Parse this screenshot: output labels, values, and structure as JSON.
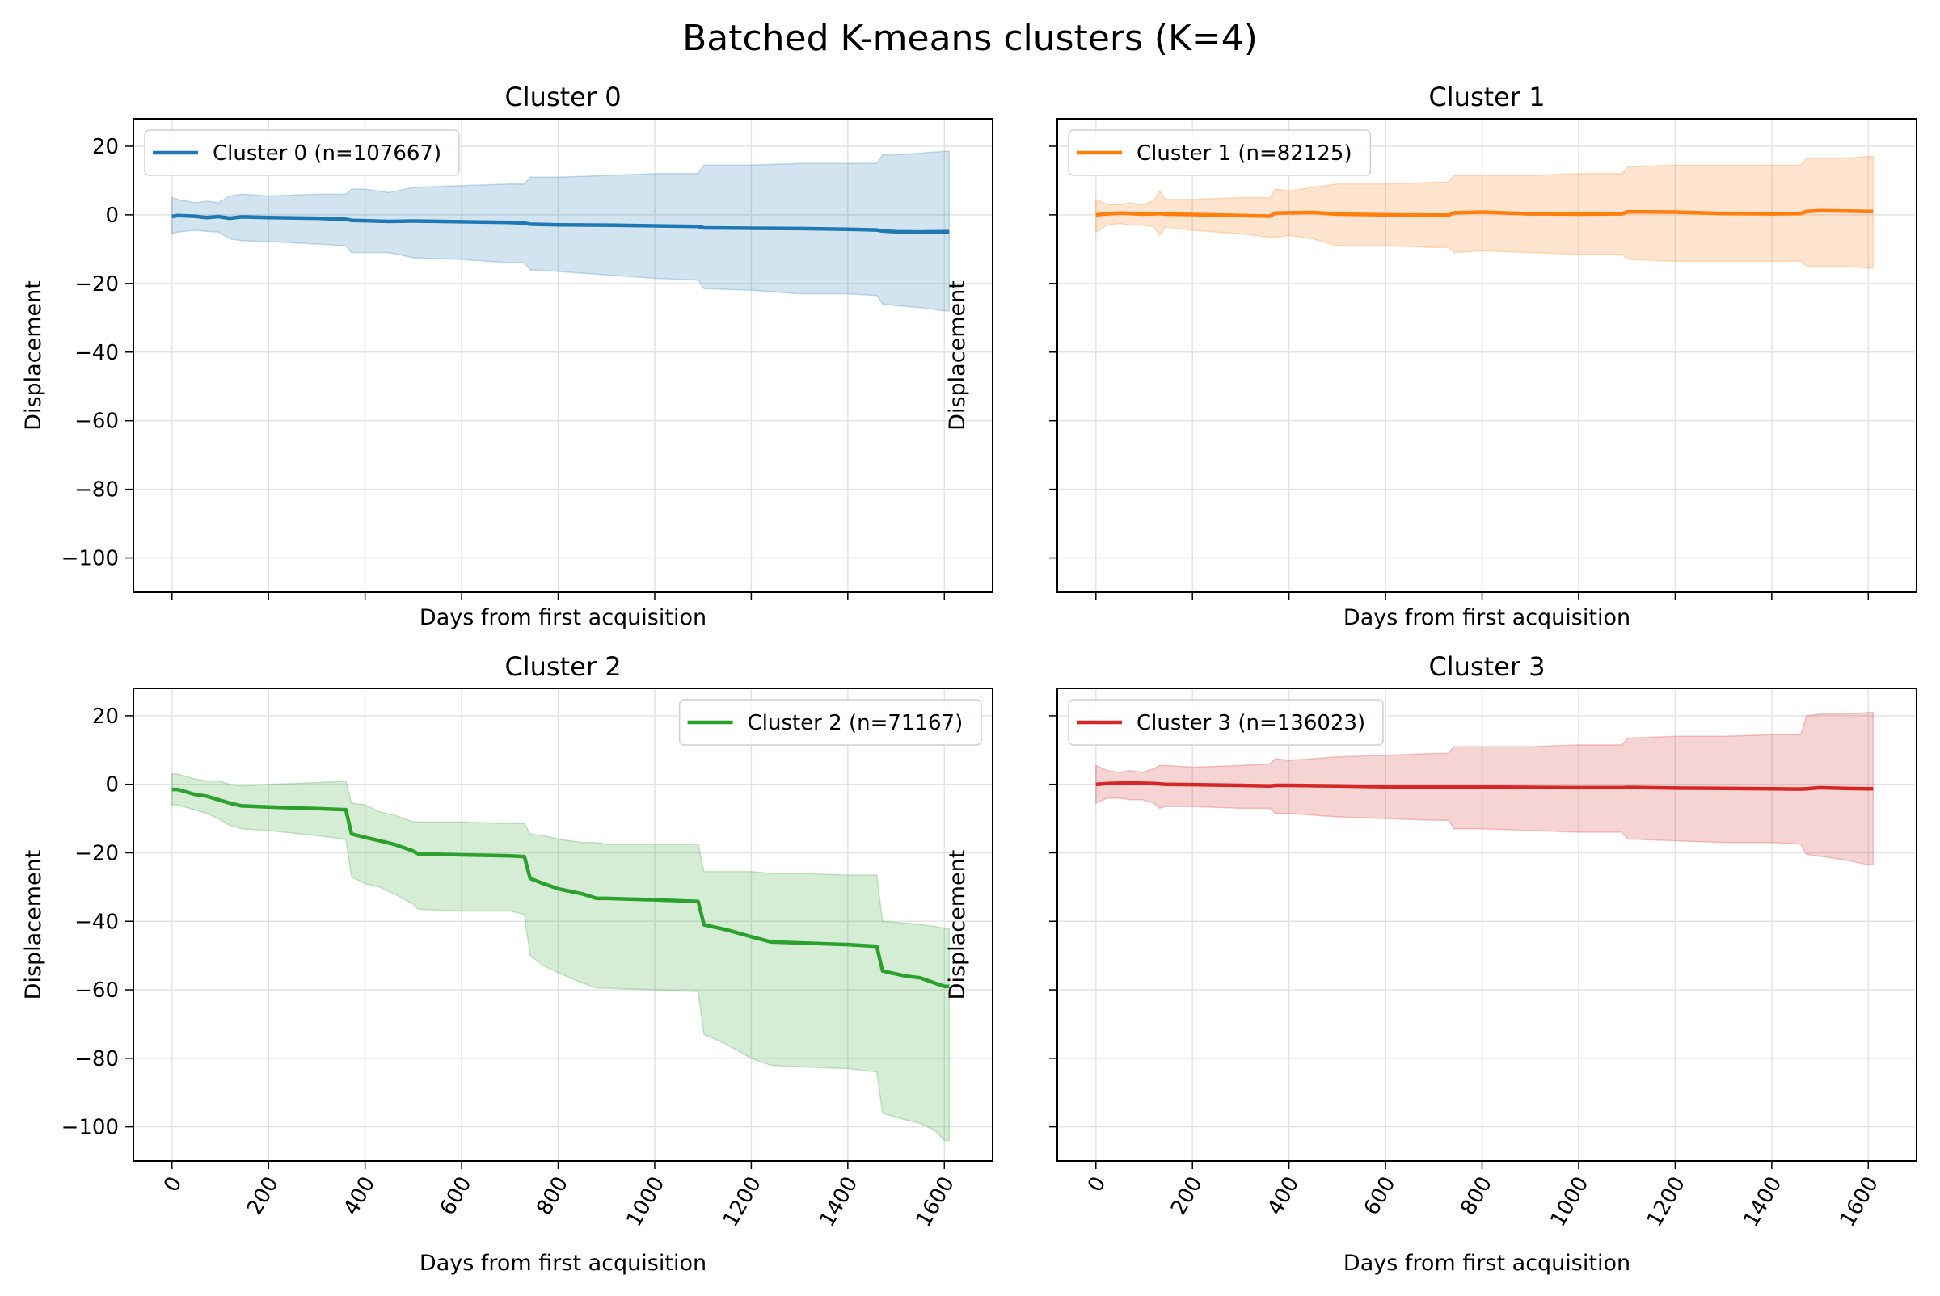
{
  "figure": {
    "title": "Batched K-means clusters (K=4)"
  },
  "chart_data": [
    {
      "type": "line",
      "title": "Cluster 0",
      "xlabel": "Days from first acquisition",
      "ylabel": "Displacement",
      "xlim": [
        -80,
        1700
      ],
      "ylim": [
        -110,
        28
      ],
      "xticks": [
        0,
        200,
        400,
        600,
        800,
        1000,
        1200,
        1400,
        1600
      ],
      "yticks": [
        20,
        0,
        -20,
        -40,
        -60,
        -80,
        -100
      ],
      "grid": true,
      "legend_position": "upper left",
      "show_xtick_labels": false,
      "show_ytick_labels": true,
      "color": "#1f77b4",
      "series": [
        {
          "name": "Cluster 0 (n=107667)",
          "x": [
            0,
            12,
            48,
            72,
            96,
            120,
            144,
            200,
            300,
            360,
            372,
            400,
            450,
            500,
            600,
            700,
            730,
            742,
            800,
            900,
            1000,
            1090,
            1102,
            1200,
            1300,
            1400,
            1460,
            1472,
            1500,
            1550,
            1600,
            1610
          ],
          "mean": [
            -0.5,
            -0.2,
            -0.4,
            -0.8,
            -0.5,
            -1.0,
            -0.6,
            -0.8,
            -1.0,
            -1.3,
            -1.6,
            -1.7,
            -1.9,
            -1.8,
            -2.0,
            -2.2,
            -2.4,
            -2.7,
            -2.9,
            -3.0,
            -3.2,
            -3.4,
            -3.8,
            -3.9,
            -4.0,
            -4.2,
            -4.4,
            -4.7,
            -4.9,
            -5.0,
            -4.9,
            -4.9
          ],
          "upper": [
            5,
            4.5,
            3.5,
            4.0,
            3.5,
            5.5,
            6.0,
            5.5,
            6.0,
            6.0,
            7.5,
            7.5,
            6.5,
            8.0,
            8.5,
            9.0,
            9.0,
            11.0,
            11.0,
            11.5,
            12.0,
            12.0,
            14.5,
            14.5,
            15.0,
            15.0,
            15.0,
            17.5,
            17.5,
            18.0,
            18.5,
            18.5
          ],
          "lower": [
            -5.5,
            -5.0,
            -4.5,
            -4.8,
            -5.0,
            -7.0,
            -7.5,
            -7.8,
            -8.5,
            -9.0,
            -11.0,
            -11.0,
            -11.0,
            -12.5,
            -13.0,
            -14.0,
            -14.0,
            -16.0,
            -16.5,
            -17.5,
            -18.5,
            -19.0,
            -21.5,
            -22.0,
            -23.0,
            -23.0,
            -23.5,
            -26.0,
            -26.5,
            -27.0,
            -28.0,
            -28.0
          ]
        }
      ]
    },
    {
      "type": "line",
      "title": "Cluster 1",
      "xlabel": "Days from first acquisition",
      "ylabel": "Displacement",
      "xlim": [
        -80,
        1700
      ],
      "ylim": [
        -110,
        28
      ],
      "xticks": [
        0,
        200,
        400,
        600,
        800,
        1000,
        1200,
        1400,
        1600
      ],
      "yticks": [
        20,
        0,
        -20,
        -40,
        -60,
        -80,
        -100
      ],
      "grid": true,
      "legend_position": "upper left",
      "show_xtick_labels": false,
      "show_ytick_labels": false,
      "color": "#ff7f0e",
      "series": [
        {
          "name": "Cluster 1 (n=82125)",
          "x": [
            0,
            24,
            48,
            72,
            96,
            120,
            132,
            144,
            200,
            300,
            360,
            372,
            400,
            450,
            500,
            600,
            700,
            730,
            742,
            800,
            900,
            1000,
            1090,
            1102,
            1200,
            1300,
            1400,
            1460,
            1472,
            1500,
            1550,
            1600,
            1610
          ],
          "mean": [
            0.0,
            0.3,
            0.5,
            0.4,
            0.2,
            0.3,
            0.4,
            0.2,
            0.1,
            -0.2,
            -0.4,
            0.5,
            0.6,
            0.7,
            0.2,
            0.0,
            -0.1,
            -0.1,
            0.6,
            0.8,
            0.3,
            0.2,
            0.3,
            0.9,
            0.8,
            0.4,
            0.3,
            0.4,
            1.0,
            1.2,
            1.1,
            1.0,
            1.0
          ],
          "upper": [
            4.5,
            3.0,
            3.0,
            3.5,
            3.0,
            4.0,
            7.0,
            4.5,
            4.5,
            5.0,
            5.0,
            7.5,
            7.0,
            8.0,
            9.0,
            9.0,
            9.5,
            9.5,
            11.5,
            11.5,
            11.5,
            12.0,
            12.0,
            14.0,
            14.5,
            14.5,
            14.5,
            14.5,
            16.5,
            16.5,
            16.5,
            17.0,
            17.0
          ],
          "lower": [
            -5.0,
            -3.0,
            -2.5,
            -3.0,
            -3.0,
            -3.5,
            -6.0,
            -3.5,
            -4.5,
            -5.5,
            -6.5,
            -6.5,
            -6.0,
            -7.0,
            -9.0,
            -9.0,
            -9.5,
            -9.5,
            -11.0,
            -10.5,
            -11.0,
            -11.5,
            -11.5,
            -13.0,
            -13.5,
            -13.5,
            -13.5,
            -13.5,
            -15.0,
            -15.0,
            -15.0,
            -15.5,
            -15.5
          ]
        }
      ]
    },
    {
      "type": "line",
      "title": "Cluster 2",
      "xlabel": "Days from first acquisition",
      "ylabel": "Displacement",
      "xlim": [
        -80,
        1700
      ],
      "ylim": [
        -110,
        28
      ],
      "xticks": [
        0,
        200,
        400,
        600,
        800,
        1000,
        1200,
        1400,
        1600
      ],
      "yticks": [
        20,
        0,
        -20,
        -40,
        -60,
        -80,
        -100
      ],
      "grid": true,
      "legend_position": "upper right",
      "show_xtick_labels": true,
      "show_ytick_labels": true,
      "color": "#2ca02c",
      "series": [
        {
          "name": "Cluster 2 (n=71167)",
          "x": [
            0,
            12,
            48,
            72,
            96,
            120,
            144,
            200,
            300,
            360,
            372,
            400,
            430,
            460,
            500,
            510,
            600,
            700,
            730,
            742,
            770,
            800,
            850,
            880,
            900,
            1000,
            1090,
            1102,
            1150,
            1200,
            1240,
            1300,
            1400,
            1460,
            1472,
            1520,
            1550,
            1580,
            1600,
            1610
          ],
          "mean": [
            -1.5,
            -1.5,
            -3.0,
            -3.5,
            -4.5,
            -5.5,
            -6.3,
            -6.6,
            -7.1,
            -7.4,
            -14.5,
            -15.5,
            -16.5,
            -17.5,
            -19.5,
            -20.3,
            -20.6,
            -20.9,
            -21.1,
            -27.5,
            -29.0,
            -30.5,
            -32.0,
            -33.3,
            -33.3,
            -33.7,
            -34.2,
            -41.0,
            -42.5,
            -44.5,
            -46.0,
            -46.3,
            -46.8,
            -47.3,
            -54.5,
            -56.0,
            -56.5,
            -58.0,
            -59.0,
            -59.0
          ],
          "upper": [
            3,
            3,
            1.5,
            1.0,
            1.0,
            0.0,
            -0.5,
            0.0,
            0.5,
            1.0,
            -5.5,
            -6.0,
            -8.0,
            -9.0,
            -11.0,
            -11.0,
            -11.0,
            -11.5,
            -11.5,
            -14.5,
            -15.0,
            -16.0,
            -17.0,
            -17.0,
            -17.5,
            -17.5,
            -17.5,
            -25.5,
            -25.5,
            -25.5,
            -26.0,
            -26.0,
            -26.5,
            -26.5,
            -40.0,
            -40.5,
            -41.0,
            -41.5,
            -42.0,
            -42.0
          ],
          "lower": [
            -6,
            -6,
            -7.5,
            -8.5,
            -10.0,
            -12.0,
            -13.0,
            -13.5,
            -15.0,
            -16.0,
            -27.0,
            -29.0,
            -30.0,
            -32.0,
            -35.0,
            -36.5,
            -37.0,
            -37.0,
            -38.0,
            -50.0,
            -53.0,
            -55.0,
            -58.0,
            -59.5,
            -59.5,
            -60.0,
            -60.5,
            -73.0,
            -76.0,
            -80.0,
            -82.0,
            -82.5,
            -83.0,
            -84.0,
            -96.0,
            -98.0,
            -99.0,
            -101.0,
            -104.0,
            -104.0
          ]
        }
      ]
    },
    {
      "type": "line",
      "title": "Cluster 3",
      "xlabel": "Days from first acquisition",
      "ylabel": "Displacement",
      "xlim": [
        -80,
        1700
      ],
      "ylim": [
        -110,
        28
      ],
      "xticks": [
        0,
        200,
        400,
        600,
        800,
        1000,
        1200,
        1400,
        1600
      ],
      "yticks": [
        20,
        0,
        -20,
        -40,
        -60,
        -80,
        -100
      ],
      "grid": true,
      "legend_position": "upper left",
      "show_xtick_labels": true,
      "show_ytick_labels": false,
      "color": "#d62728",
      "series": [
        {
          "name": "Cluster 3 (n=136023)",
          "x": [
            0,
            24,
            48,
            72,
            96,
            120,
            132,
            144,
            200,
            300,
            360,
            372,
            400,
            500,
            600,
            700,
            730,
            742,
            800,
            900,
            1000,
            1090,
            1102,
            1200,
            1300,
            1400,
            1460,
            1472,
            1500,
            1550,
            1600,
            1610
          ],
          "mean": [
            0.0,
            0.2,
            0.3,
            0.4,
            0.3,
            0.2,
            0.1,
            0.0,
            -0.1,
            -0.3,
            -0.5,
            -0.3,
            -0.3,
            -0.5,
            -0.7,
            -0.8,
            -0.8,
            -0.7,
            -0.8,
            -0.9,
            -1.0,
            -1.0,
            -0.9,
            -1.1,
            -1.2,
            -1.3,
            -1.4,
            -1.3,
            -1.0,
            -1.2,
            -1.3,
            -1.3
          ],
          "upper": [
            5.5,
            4.0,
            3.5,
            4.0,
            3.5,
            4.5,
            5.5,
            5.5,
            5.0,
            5.5,
            6.0,
            7.5,
            7.0,
            8.0,
            8.5,
            9.0,
            9.0,
            11.0,
            11.0,
            11.0,
            11.5,
            11.5,
            13.5,
            14.0,
            14.0,
            14.5,
            14.5,
            20.0,
            20.5,
            20.5,
            21.0,
            21.0
          ],
          "lower": [
            -5.5,
            -4.0,
            -4.0,
            -4.5,
            -4.5,
            -5.5,
            -7.0,
            -6.5,
            -6.5,
            -7.0,
            -7.0,
            -8.5,
            -8.5,
            -9.5,
            -10.0,
            -10.5,
            -10.5,
            -13.0,
            -13.0,
            -13.5,
            -14.0,
            -14.0,
            -16.0,
            -16.5,
            -17.0,
            -17.0,
            -17.5,
            -20.5,
            -21.0,
            -22.0,
            -23.5,
            -23.5
          ]
        }
      ]
    }
  ]
}
